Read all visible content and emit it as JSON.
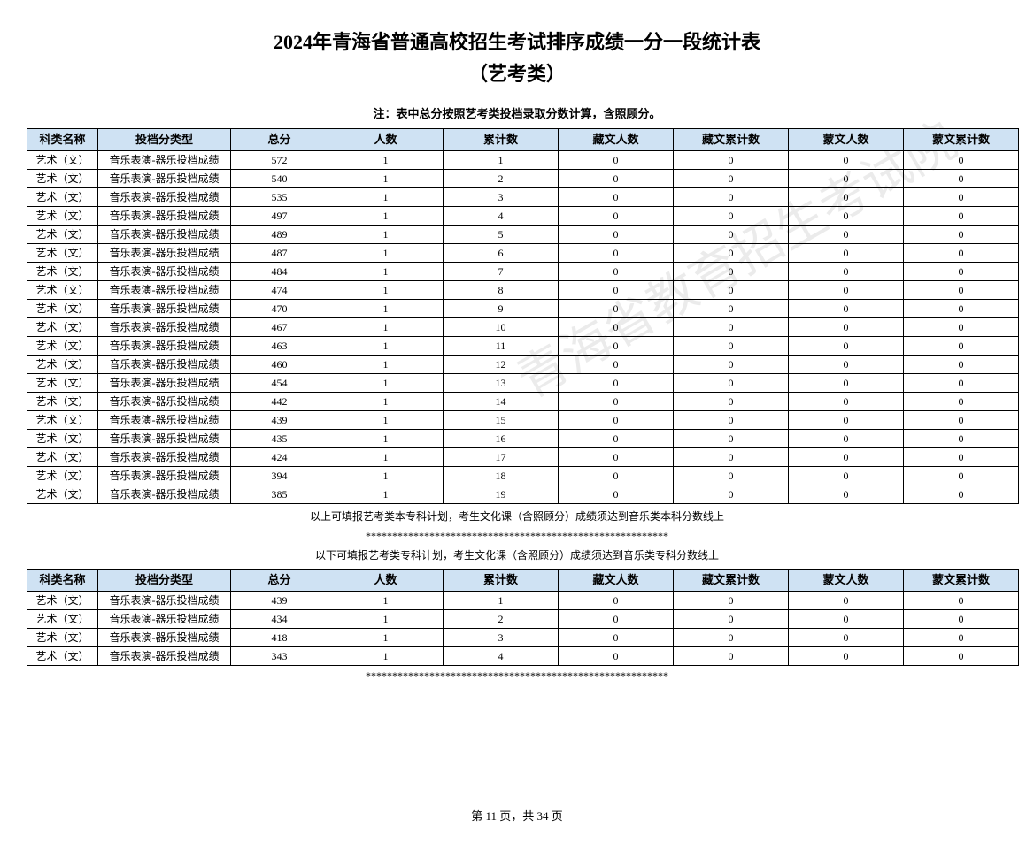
{
  "title_line1": "2024年青海省普通高校招生考试排序成绩一分一段统计表",
  "title_line2": "（艺考类）",
  "note": "注：表中总分按照艺考类投档录取分数计算，含照顾分。",
  "headers": {
    "subject": "科类名称",
    "type": "投档分类型",
    "score": "总分",
    "count": "人数",
    "cum": "累计数",
    "zang": "藏文人数",
    "zangcum": "藏文累计数",
    "meng": "蒙文人数",
    "mengcum": "蒙文累计数"
  },
  "subject_label": "艺术（文）",
  "type_label": "音乐表演-器乐投档成绩",
  "table1_rows": [
    {
      "score": "572",
      "count": "1",
      "cum": "1",
      "zang": "0",
      "zangcum": "0",
      "meng": "0",
      "mengcum": "0"
    },
    {
      "score": "540",
      "count": "1",
      "cum": "2",
      "zang": "0",
      "zangcum": "0",
      "meng": "0",
      "mengcum": "0"
    },
    {
      "score": "535",
      "count": "1",
      "cum": "3",
      "zang": "0",
      "zangcum": "0",
      "meng": "0",
      "mengcum": "0"
    },
    {
      "score": "497",
      "count": "1",
      "cum": "4",
      "zang": "0",
      "zangcum": "0",
      "meng": "0",
      "mengcum": "0"
    },
    {
      "score": "489",
      "count": "1",
      "cum": "5",
      "zang": "0",
      "zangcum": "0",
      "meng": "0",
      "mengcum": "0"
    },
    {
      "score": "487",
      "count": "1",
      "cum": "6",
      "zang": "0",
      "zangcum": "0",
      "meng": "0",
      "mengcum": "0"
    },
    {
      "score": "484",
      "count": "1",
      "cum": "7",
      "zang": "0",
      "zangcum": "0",
      "meng": "0",
      "mengcum": "0"
    },
    {
      "score": "474",
      "count": "1",
      "cum": "8",
      "zang": "0",
      "zangcum": "0",
      "meng": "0",
      "mengcum": "0"
    },
    {
      "score": "470",
      "count": "1",
      "cum": "9",
      "zang": "0",
      "zangcum": "0",
      "meng": "0",
      "mengcum": "0"
    },
    {
      "score": "467",
      "count": "1",
      "cum": "10",
      "zang": "0",
      "zangcum": "0",
      "meng": "0",
      "mengcum": "0"
    },
    {
      "score": "463",
      "count": "1",
      "cum": "11",
      "zang": "0",
      "zangcum": "0",
      "meng": "0",
      "mengcum": "0"
    },
    {
      "score": "460",
      "count": "1",
      "cum": "12",
      "zang": "0",
      "zangcum": "0",
      "meng": "0",
      "mengcum": "0"
    },
    {
      "score": "454",
      "count": "1",
      "cum": "13",
      "zang": "0",
      "zangcum": "0",
      "meng": "0",
      "mengcum": "0"
    },
    {
      "score": "442",
      "count": "1",
      "cum": "14",
      "zang": "0",
      "zangcum": "0",
      "meng": "0",
      "mengcum": "0"
    },
    {
      "score": "439",
      "count": "1",
      "cum": "15",
      "zang": "0",
      "zangcum": "0",
      "meng": "0",
      "mengcum": "0"
    },
    {
      "score": "435",
      "count": "1",
      "cum": "16",
      "zang": "0",
      "zangcum": "0",
      "meng": "0",
      "mengcum": "0"
    },
    {
      "score": "424",
      "count": "1",
      "cum": "17",
      "zang": "0",
      "zangcum": "0",
      "meng": "0",
      "mengcum": "0"
    },
    {
      "score": "394",
      "count": "1",
      "cum": "18",
      "zang": "0",
      "zangcum": "0",
      "meng": "0",
      "mengcum": "0"
    },
    {
      "score": "385",
      "count": "1",
      "cum": "19",
      "zang": "0",
      "zangcum": "0",
      "meng": "0",
      "mengcum": "0"
    }
  ],
  "separator1": "以上可填报艺考类本专科计划，考生文化课（含照顾分）成绩须达到音乐类本科分数线上",
  "stars": "*********************************************************",
  "separator2": "以下可填报艺考类专科计划，考生文化课（含照顾分）成绩须达到音乐类专科分数线上",
  "table2_rows": [
    {
      "score": "439",
      "count": "1",
      "cum": "1",
      "zang": "0",
      "zangcum": "0",
      "meng": "0",
      "mengcum": "0"
    },
    {
      "score": "434",
      "count": "1",
      "cum": "2",
      "zang": "0",
      "zangcum": "0",
      "meng": "0",
      "mengcum": "0"
    },
    {
      "score": "418",
      "count": "1",
      "cum": "3",
      "zang": "0",
      "zangcum": "0",
      "meng": "0",
      "mengcum": "0"
    },
    {
      "score": "343",
      "count": "1",
      "cum": "4",
      "zang": "0",
      "zangcum": "0",
      "meng": "0",
      "mengcum": "0"
    }
  ],
  "footer": "第 11 页，共 34 页",
  "watermark": "青海省教育招生考试院"
}
